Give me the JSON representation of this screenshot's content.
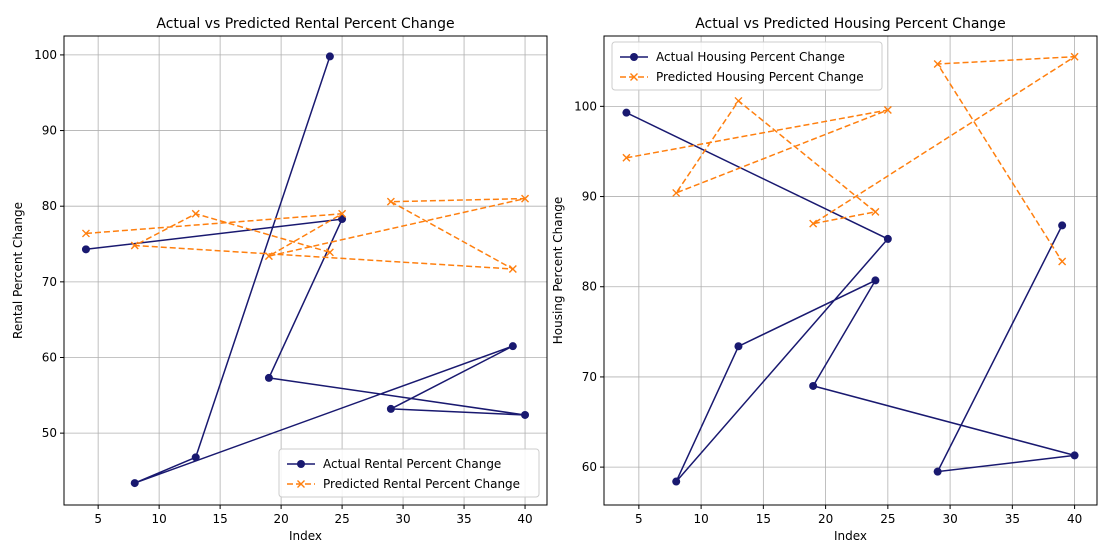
{
  "chart_data": [
    {
      "type": "line",
      "title": "Actual vs Predicted Rental Percent Change",
      "xlabel": "Index",
      "ylabel": "Rental Percent Change",
      "xlim": [
        2.2,
        41.8
      ],
      "ylim": [
        40.5,
        102.5
      ],
      "xticks": [
        5,
        10,
        15,
        20,
        25,
        30,
        35,
        40
      ],
      "yticks": [
        50,
        60,
        70,
        80,
        90,
        100
      ],
      "grid": true,
      "legend_position": "lower-right",
      "series": [
        {
          "name": "Actual Rental Percent Change",
          "color": "#191970",
          "style": "solid",
          "marker": "circle",
          "x": [
            4,
            25,
            19,
            40,
            29,
            39,
            8,
            13,
            24
          ],
          "y": [
            74.3,
            78.3,
            57.3,
            52.4,
            53.2,
            61.5,
            43.4,
            46.8,
            99.8
          ]
        },
        {
          "name": "Predicted Rental Percent Change",
          "color": "#ff7f0e",
          "style": "dashed",
          "marker": "x",
          "x": [
            4,
            25,
            19,
            40,
            29,
            39,
            8,
            13,
            24
          ],
          "y": [
            76.4,
            79.0,
            73.4,
            81.0,
            80.6,
            71.7,
            74.8,
            79.0,
            73.9
          ]
        }
      ]
    },
    {
      "type": "line",
      "title": "Actual vs Predicted Housing Percent Change",
      "xlabel": "Index",
      "ylabel": "Housing Percent Change",
      "xlim": [
        2.2,
        41.8
      ],
      "ylim": [
        55.8,
        107.8
      ],
      "xticks": [
        5,
        10,
        15,
        20,
        25,
        30,
        35,
        40
      ],
      "yticks": [
        60,
        70,
        80,
        90,
        100
      ],
      "grid": true,
      "legend_position": "upper-left",
      "series": [
        {
          "name": "Actual Housing Percent Change",
          "color": "#191970",
          "style": "solid",
          "marker": "circle",
          "x": [
            4,
            25,
            8,
            13,
            24,
            19,
            40,
            29,
            39
          ],
          "y": [
            99.3,
            85.3,
            58.4,
            73.4,
            80.7,
            69.0,
            61.3,
            59.5,
            86.8
          ]
        },
        {
          "name": "Predicted Housing Percent Change",
          "color": "#ff7f0e",
          "style": "dashed",
          "marker": "x",
          "x": [
            4,
            25,
            8,
            13,
            24,
            19,
            40,
            29,
            39
          ],
          "y": [
            94.3,
            99.6,
            90.4,
            100.6,
            88.3,
            87.0,
            105.5,
            104.7,
            82.8
          ]
        }
      ]
    }
  ]
}
